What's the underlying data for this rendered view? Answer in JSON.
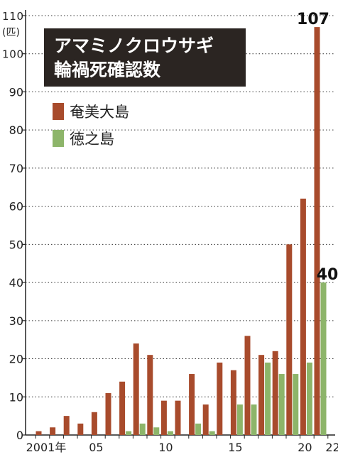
{
  "chart_data": {
    "type": "bar",
    "title_lines": [
      "アマミノクロウサギ",
      "輪禍死確認数"
    ],
    "unit_label": "(匹)",
    "ylim": [
      0,
      110
    ],
    "yticks": [
      0,
      10,
      20,
      30,
      40,
      50,
      60,
      70,
      80,
      90,
      100,
      110
    ],
    "grid": "horizontal-dotted",
    "legend_position": "top-left",
    "categories": [
      "2001",
      "02",
      "03",
      "04",
      "05",
      "06",
      "07",
      "08",
      "09",
      "10",
      "11",
      "12",
      "13",
      "14",
      "15",
      "16",
      "17",
      "18",
      "19",
      "20",
      "21",
      "22"
    ],
    "x_tick_labels": [
      {
        "index": 0,
        "label": "2001年"
      },
      {
        "index": 4,
        "label": "05"
      },
      {
        "index": 9,
        "label": "10"
      },
      {
        "index": 14,
        "label": "15"
      },
      {
        "index": 19,
        "label": "20"
      },
      {
        "index": 21,
        "label": "22"
      }
    ],
    "series": [
      {
        "name": "奄美大島",
        "color": "#a84b2c",
        "values": [
          1,
          2,
          5,
          3,
          6,
          11,
          14,
          24,
          21,
          9,
          9,
          16,
          8,
          19,
          17,
          26,
          21,
          22,
          50,
          62,
          107,
          0
        ]
      },
      {
        "name": "徳之島",
        "color": "#8db56a",
        "values": [
          0,
          0,
          0,
          0,
          0,
          0,
          1,
          3,
          2,
          1,
          0,
          3,
          1,
          0,
          8,
          8,
          19,
          16,
          16,
          19,
          40,
          0
        ]
      }
    ],
    "annotations": [
      {
        "series": 0,
        "index": 20,
        "text": "107"
      },
      {
        "series": 1,
        "index": 20,
        "text": "40"
      }
    ]
  }
}
